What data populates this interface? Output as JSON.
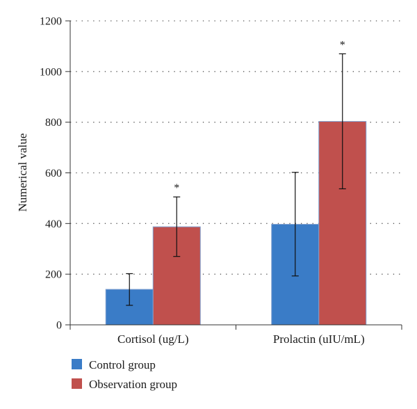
{
  "chart_data": {
    "type": "bar",
    "title": "",
    "xlabel": "",
    "ylabel": "Numerical value",
    "ylim": [
      0,
      1200
    ],
    "yticks": [
      0,
      200,
      400,
      600,
      800,
      1000,
      1200
    ],
    "grid": "horizontal dotted",
    "legend_position": "bottom-left",
    "categories": [
      "Cortisol (ug/L)",
      "Prolactin (uIU/mL)"
    ],
    "series": [
      {
        "name": "Control group",
        "color": "#3a7cc7",
        "values": [
          140,
          397
        ],
        "error_low": [
          77,
          193
        ],
        "error_high": [
          202,
          602
        ],
        "significance": [
          "",
          ""
        ]
      },
      {
        "name": "Observation group",
        "color": "#c0504d",
        "values": [
          387,
          803
        ],
        "error_low": [
          270,
          537
        ],
        "error_high": [
          505,
          1070
        ],
        "significance": [
          "*",
          "*"
        ]
      }
    ]
  }
}
